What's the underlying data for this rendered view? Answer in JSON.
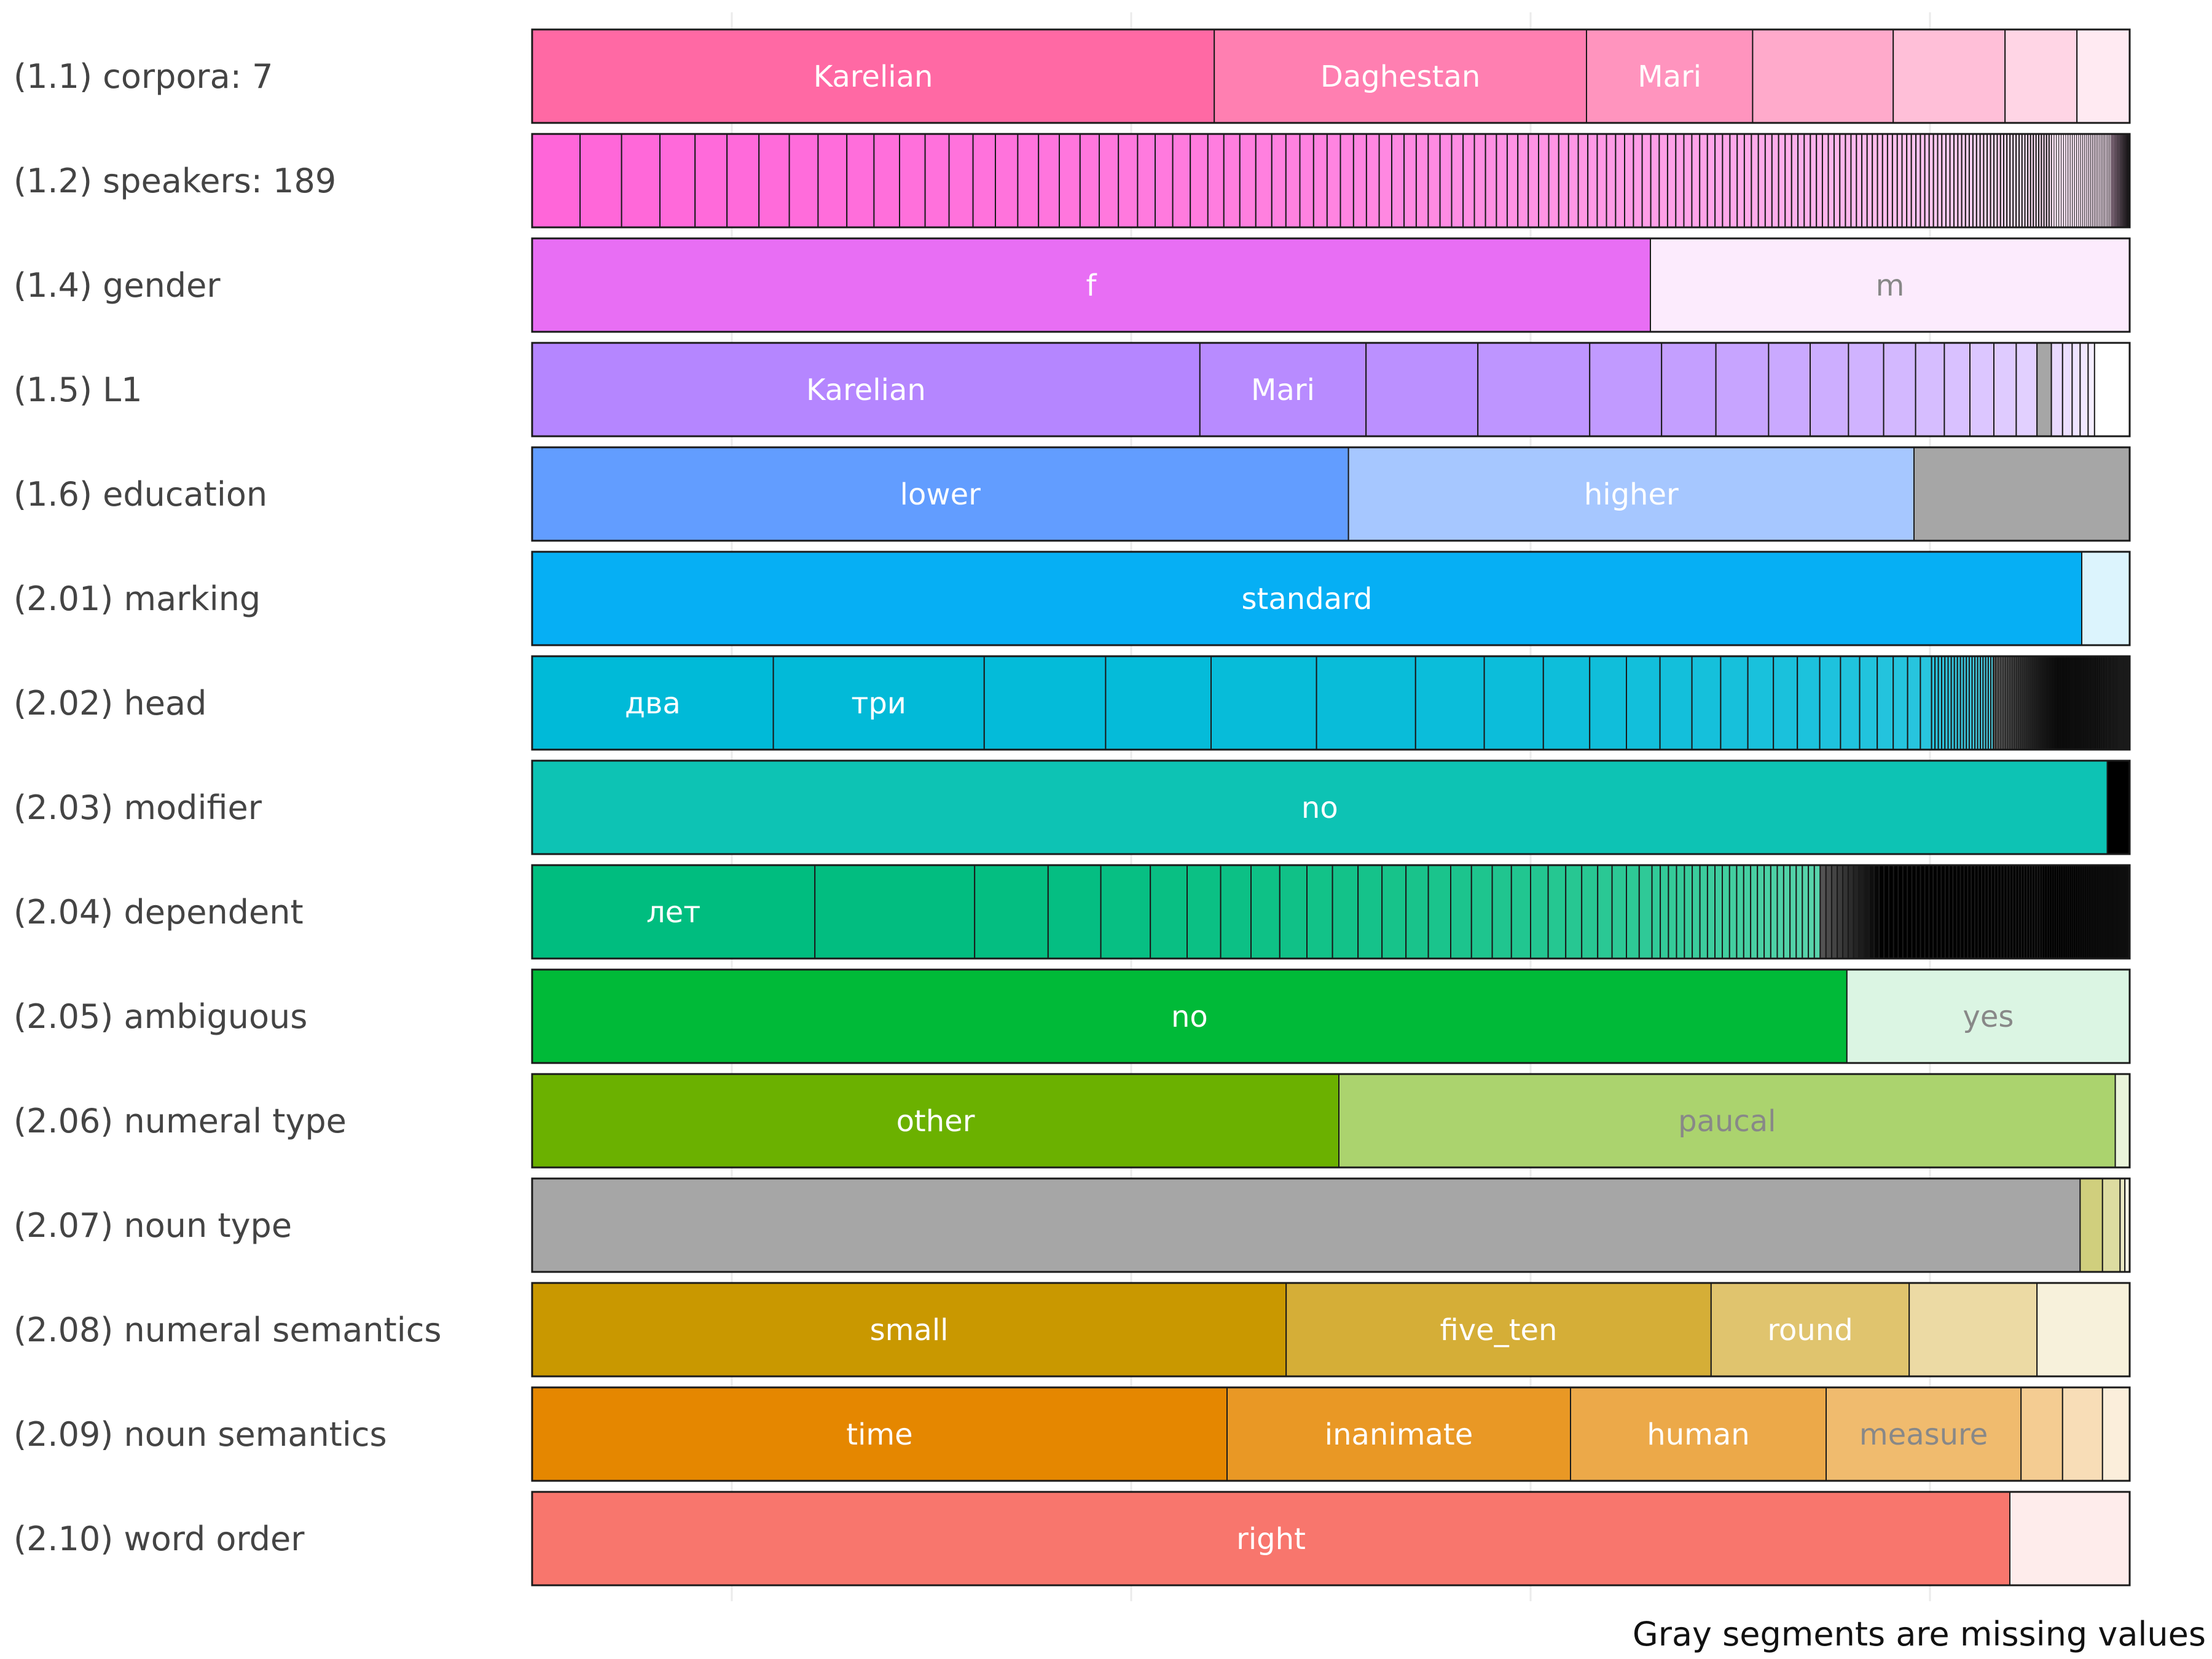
{
  "footnote": "Gray segments are missing values",
  "chart_data": {
    "type": "bar",
    "orientation": "horizontal",
    "stacked": true,
    "normalized": true,
    "x_range": [
      0,
      1
    ],
    "grid": "vertical",
    "missing_color": "#a6a6a6",
    "rows": [
      {
        "label": "(1.1) corpora: 7",
        "color": "#ff69a4",
        "mode": "fade",
        "segments": [
          {
            "label": "Karelian",
            "value": 0.427,
            "text_color": "#ffffff"
          },
          {
            "label": "Daghestan",
            "value": 0.233,
            "text_color": "#ffffff"
          },
          {
            "label": "Mari",
            "value": 0.104,
            "text_color": "#ffffff"
          },
          {
            "label": "",
            "value": 0.088
          },
          {
            "label": "",
            "value": 0.07
          },
          {
            "label": "",
            "value": 0.045
          },
          {
            "label": "",
            "value": 0.033
          }
        ]
      },
      {
        "label": "(1.2) speakers: 189",
        "color": "#ff66d9",
        "mode": "many",
        "total": 189,
        "values_first": [
          0.03,
          0.026,
          0.024,
          0.022,
          0.02,
          0.02,
          0.019,
          0.018,
          0.018,
          0.017,
          0.016,
          0.016,
          0.015,
          0.015,
          0.014,
          0.014,
          0.013,
          0.013,
          0.013,
          0.012,
          0.012,
          0.012,
          0.011,
          0.011,
          0.011,
          0.011,
          0.01,
          0.01,
          0.01,
          0.01
        ]
      },
      {
        "label": "(1.4) gender",
        "color": "#e86ef4",
        "mode": "fade",
        "segments": [
          {
            "label": "f",
            "value": 0.7,
            "text_color": "#ffffff"
          },
          {
            "label": "m",
            "value": 0.3,
            "text_color": "#888888"
          }
        ]
      },
      {
        "label": "(1.5) L1",
        "color": "#b586ff",
        "mode": "fade",
        "segments": [
          {
            "label": "Karelian",
            "value": 0.418,
            "text_color": "#ffffff"
          },
          {
            "label": "Mari",
            "value": 0.104,
            "text_color": "#ffffff"
          },
          {
            "label": "",
            "value": 0.07
          },
          {
            "label": "",
            "value": 0.07
          },
          {
            "label": "",
            "value": 0.045
          },
          {
            "label": "",
            "value": 0.034
          },
          {
            "label": "",
            "value": 0.033
          },
          {
            "label": "",
            "value": 0.026
          },
          {
            "label": "",
            "value": 0.024
          },
          {
            "label": "",
            "value": 0.022
          },
          {
            "label": "",
            "value": 0.02
          },
          {
            "label": "",
            "value": 0.018
          },
          {
            "label": "",
            "value": 0.016
          },
          {
            "label": "",
            "value": 0.015
          },
          {
            "label": "",
            "value": 0.014
          },
          {
            "label": "",
            "value": 0.013
          },
          {
            "label": "",
            "value": 0.009,
            "missing": true
          },
          {
            "label": "",
            "value": 0.007
          },
          {
            "label": "",
            "value": 0.006
          },
          {
            "label": "",
            "value": 0.005
          },
          {
            "label": "",
            "value": 0.005
          },
          {
            "label": "",
            "value": 0.004
          }
        ]
      },
      {
        "label": "(1.6) education",
        "color": "#629dff",
        "mode": "fade",
        "segments": [
          {
            "label": "lower",
            "value": 0.511,
            "text_color": "#ffffff"
          },
          {
            "label": "higher",
            "value": 0.354,
            "text_color": "#ffffff"
          },
          {
            "label": "",
            "value": 0.135,
            "missing": true
          }
        ]
      },
      {
        "label": "(2.01) marking",
        "color": "#06aff4",
        "mode": "fade",
        "segments": [
          {
            "label": "standard",
            "value": 0.97,
            "text_color": "#ffffff"
          },
          {
            "label": "",
            "value": 0.03
          }
        ]
      },
      {
        "label": "(2.02) head",
        "color": "#00bad8",
        "mode": "many",
        "values_first": [
          0.151,
          0.132,
          0.076,
          0.066,
          0.066,
          0.062,
          0.043,
          0.037,
          0.029,
          0.023,
          0.021,
          0.02,
          0.018,
          0.017,
          0.016,
          0.015,
          0.014,
          0.013,
          0.012,
          0.011,
          0.01,
          0.009,
          0.008,
          0.007
        ],
        "first_labels": [
          "два",
          "три"
        ],
        "label_color": "#ffffff",
        "tail_black_from": 0.955
      },
      {
        "label": "(2.03) modifier",
        "color": "#0dc3b4",
        "mode": "fade",
        "segments": [
          {
            "label": "no",
            "value": 0.986,
            "text_color": "#ffffff"
          },
          {
            "label": "",
            "value": 0.014,
            "black": true
          }
        ]
      },
      {
        "label": "(2.04) dependent",
        "color": "#00bd7f",
        "mode": "many",
        "values_first": [
          0.177,
          0.1,
          0.046,
          0.033,
          0.031,
          0.023,
          0.021,
          0.019,
          0.018,
          0.017,
          0.016,
          0.016,
          0.015,
          0.015,
          0.014,
          0.014,
          0.013,
          0.013,
          0.012,
          0.012,
          0.011,
          0.011,
          0.01,
          0.01,
          0.009,
          0.009,
          0.008,
          0.008
        ],
        "first_labels": [
          "лет"
        ],
        "label_color": "#ffffff",
        "tail_black_from": 0.845
      },
      {
        "label": "(2.05) ambiguous",
        "color": "#00ba38",
        "mode": "fade",
        "segments": [
          {
            "label": "no",
            "value": 0.823,
            "text_color": "#ffffff"
          },
          {
            "label": "yes",
            "value": 0.177,
            "text_color": "#888888"
          }
        ]
      },
      {
        "label": "(2.06) numeral type",
        "color": "#6bb100",
        "mode": "fade",
        "segments": [
          {
            "label": "other",
            "value": 0.505,
            "text_color": "#ffffff"
          },
          {
            "label": "paucal",
            "value": 0.486,
            "text_color": "#888888"
          },
          {
            "label": "",
            "value": 0.009
          }
        ]
      },
      {
        "label": "(2.07) noun type",
        "color": "#c3c25a",
        "mode": "fade",
        "segments": [
          {
            "label": "",
            "value": 0.969,
            "missing": true
          },
          {
            "label": "",
            "value": 0.014
          },
          {
            "label": "",
            "value": 0.011
          },
          {
            "label": "",
            "value": 0.003
          },
          {
            "label": "",
            "value": 0.003
          }
        ]
      },
      {
        "label": "(2.08) numeral semantics",
        "color": "#c99800",
        "mode": "fade",
        "segments": [
          {
            "label": "small",
            "value": 0.472,
            "text_color": "#ffffff"
          },
          {
            "label": "five_ten",
            "value": 0.266,
            "text_color": "#ffffff"
          },
          {
            "label": "round",
            "value": 0.124,
            "text_color": "#ffffff"
          },
          {
            "label": "",
            "value": 0.08
          },
          {
            "label": "",
            "value": 0.058
          }
        ]
      },
      {
        "label": "(2.09) noun semantics",
        "color": "#e58700",
        "mode": "fade",
        "segments": [
          {
            "label": "time",
            "value": 0.435,
            "text_color": "#ffffff"
          },
          {
            "label": "inanimate",
            "value": 0.215,
            "text_color": "#ffffff"
          },
          {
            "label": "human",
            "value": 0.16,
            "text_color": "#ffffff"
          },
          {
            "label": "measure",
            "value": 0.122,
            "text_color": "#888888"
          },
          {
            "label": "",
            "value": 0.026
          },
          {
            "label": "",
            "value": 0.025
          },
          {
            "label": "",
            "value": 0.017
          }
        ]
      },
      {
        "label": "(2.10) word order",
        "color": "#f8766d",
        "mode": "fade",
        "segments": [
          {
            "label": "right",
            "value": 0.925,
            "text_color": "#ffffff"
          },
          {
            "label": "",
            "value": 0.075
          }
        ]
      }
    ]
  }
}
